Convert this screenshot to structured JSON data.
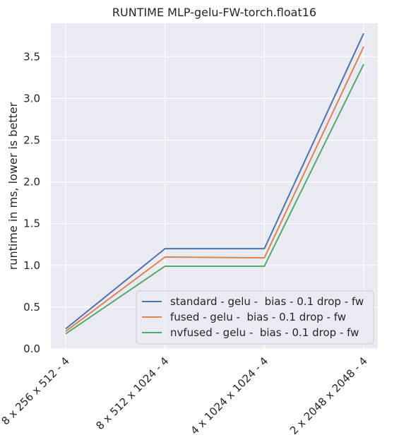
{
  "chart_data": {
    "type": "line",
    "title": "RUNTIME MLP-gelu-FW-torch.float16",
    "xlabel": "",
    "ylabel": "runtime in ms, lower is better",
    "categories": [
      "8 x 256 x 512 - 4",
      "8 x 512 x 1024 - 4",
      "4 x 1024 x 1024 - 4",
      "2 x 2048 x 2048 - 4"
    ],
    "series": [
      {
        "name": "standard - gelu -  bias - 0.1 drop - fw",
        "color": "#4c72b0",
        "values": [
          0.24,
          1.2,
          1.2,
          3.78
        ]
      },
      {
        "name": "fused - gelu -  bias - 0.1 drop - fw",
        "color": "#dd8452",
        "values": [
          0.21,
          1.1,
          1.09,
          3.62
        ]
      },
      {
        "name": "nvfused - gelu -  bias - 0.1 drop - fw",
        "color": "#55a868",
        "values": [
          0.18,
          0.99,
          0.99,
          3.41
        ]
      }
    ],
    "yticks": [
      0.0,
      0.5,
      1.0,
      1.5,
      2.0,
      2.5,
      3.0,
      3.5
    ],
    "ylim": [
      0.0,
      3.9
    ],
    "grid": true,
    "legend_position": "lower-right",
    "background_color": "#eaeaf2"
  }
}
